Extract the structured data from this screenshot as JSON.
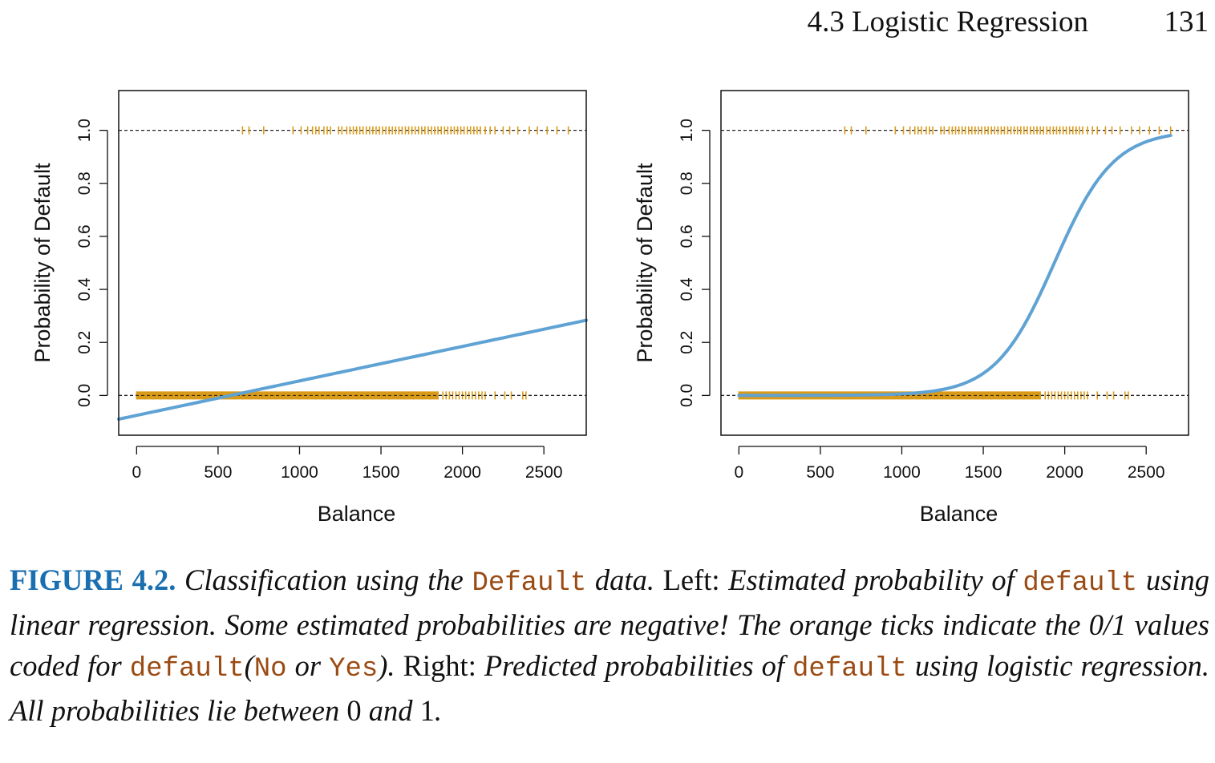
{
  "header": {
    "section_title": "4.3 Logistic Regression",
    "page_number": "131"
  },
  "chart_data": [
    {
      "type": "scatter",
      "title": "",
      "xlabel": "Balance",
      "ylabel": "Probability of Default",
      "xlim": [
        -110,
        2760
      ],
      "ylim": [
        -0.15,
        1.15
      ],
      "xticks": [
        0,
        500,
        1000,
        1500,
        2000,
        2500
      ],
      "yticks": [
        0.0,
        0.2,
        0.4,
        0.6,
        0.8,
        1.0
      ],
      "xtick_labels": [
        "0",
        "500",
        "1000",
        "1500",
        "2000",
        "2500"
      ],
      "ytick_labels": [
        "0.0",
        "0.2",
        "0.4",
        "0.6",
        "0.8",
        "1.0"
      ],
      "reference_lines_y": [
        0,
        1
      ],
      "tick_marks_y1_x": [
        650,
        690,
        780,
        960,
        1010,
        1050,
        1080,
        1100,
        1120,
        1150,
        1170,
        1190,
        1240,
        1260,
        1290,
        1310,
        1330,
        1350,
        1370,
        1390,
        1410,
        1430,
        1450,
        1470,
        1490,
        1510,
        1530,
        1550,
        1570,
        1590,
        1610,
        1630,
        1650,
        1670,
        1690,
        1710,
        1730,
        1750,
        1770,
        1790,
        1810,
        1830,
        1850,
        1870,
        1890,
        1910,
        1930,
        1950,
        1970,
        1990,
        2010,
        2030,
        2050,
        2070,
        2090,
        2110,
        2140,
        2170,
        2200,
        2250,
        2290,
        2340,
        2410,
        2460,
        2520,
        2580,
        2650
      ],
      "tick_marks_y0_x": [
        0,
        50,
        100,
        150,
        200,
        250,
        300,
        350,
        400,
        450,
        500,
        550,
        600,
        650,
        700,
        750,
        800,
        850,
        900,
        950,
        1000,
        1050,
        1100,
        1150,
        1200,
        1250,
        1300,
        1350,
        1400,
        1450,
        1500,
        1550,
        1600,
        1650,
        1700,
        1750,
        1800,
        1850,
        1880,
        1900,
        1920,
        1940,
        1960,
        1980,
        2000,
        2020,
        2040,
        2060,
        2080,
        2100,
        2120,
        2140,
        2200,
        2260,
        2300,
        2370,
        2390
      ],
      "tick_color": "#d99a19",
      "fit_line": {
        "model": "linear",
        "intercept": -0.0752,
        "slope": 0.00013,
        "x_range": [
          -110,
          2760
        ],
        "color": "#5fa2d4"
      }
    },
    {
      "type": "scatter",
      "title": "",
      "xlabel": "Balance",
      "ylabel": "Probability of Default",
      "xlim": [
        -110,
        2760
      ],
      "ylim": [
        -0.15,
        1.15
      ],
      "xticks": [
        0,
        500,
        1000,
        1500,
        2000,
        2500
      ],
      "yticks": [
        0.0,
        0.2,
        0.4,
        0.6,
        0.8,
        1.0
      ],
      "xtick_labels": [
        "0",
        "500",
        "1000",
        "1500",
        "2000",
        "2500"
      ],
      "ytick_labels": [
        "0.0",
        "0.2",
        "0.4",
        "0.6",
        "0.8",
        "1.0"
      ],
      "reference_lines_y": [
        0,
        1
      ],
      "tick_marks_y1_x": [
        650,
        690,
        780,
        960,
        1010,
        1050,
        1080,
        1100,
        1120,
        1150,
        1170,
        1190,
        1240,
        1260,
        1290,
        1310,
        1330,
        1350,
        1370,
        1390,
        1410,
        1430,
        1450,
        1470,
        1490,
        1510,
        1530,
        1550,
        1570,
        1590,
        1610,
        1630,
        1650,
        1670,
        1690,
        1710,
        1730,
        1750,
        1770,
        1790,
        1810,
        1830,
        1850,
        1870,
        1890,
        1910,
        1930,
        1950,
        1970,
        1990,
        2010,
        2030,
        2050,
        2070,
        2090,
        2110,
        2140,
        2170,
        2200,
        2250,
        2290,
        2340,
        2410,
        2460,
        2520,
        2580,
        2650
      ],
      "tick_marks_y0_x": [
        0,
        50,
        100,
        150,
        200,
        250,
        300,
        350,
        400,
        450,
        500,
        550,
        600,
        650,
        700,
        750,
        800,
        850,
        900,
        950,
        1000,
        1050,
        1100,
        1150,
        1200,
        1250,
        1300,
        1350,
        1400,
        1450,
        1500,
        1550,
        1600,
        1650,
        1700,
        1750,
        1800,
        1850,
        1880,
        1900,
        1920,
        1940,
        1960,
        1980,
        2000,
        2020,
        2040,
        2060,
        2080,
        2100,
        2120,
        2140,
        2200,
        2260,
        2300,
        2370,
        2390
      ],
      "tick_color": "#d99a19",
      "fit_line": {
        "model": "logistic",
        "beta0": -10.65,
        "beta1": 0.0055,
        "x_range": [
          0,
          2650
        ],
        "color": "#5fa2d4"
      }
    }
  ],
  "caption": {
    "label": "FIGURE 4.2.",
    "s1": " Classification using the ",
    "c1": "Default",
    "s2": " data.",
    "s3": " Left: ",
    "s4": "Estimated probability of ",
    "c2": "default",
    "s5": " using linear regression. Some estimated probabilities are negative! The orange ticks indicate the 0/1 values coded for ",
    "c3": "default",
    "s6": "(",
    "c4": "No",
    "s7": " or ",
    "c5": "Yes",
    "s8": ").",
    "s9": " Right: ",
    "s10": "Predicted probabilities of ",
    "c6": "default",
    "s11": " using logistic regression. All probabilities lie between ",
    "s12": "0",
    "s13": " and ",
    "s14": "1",
    "s15": "."
  }
}
